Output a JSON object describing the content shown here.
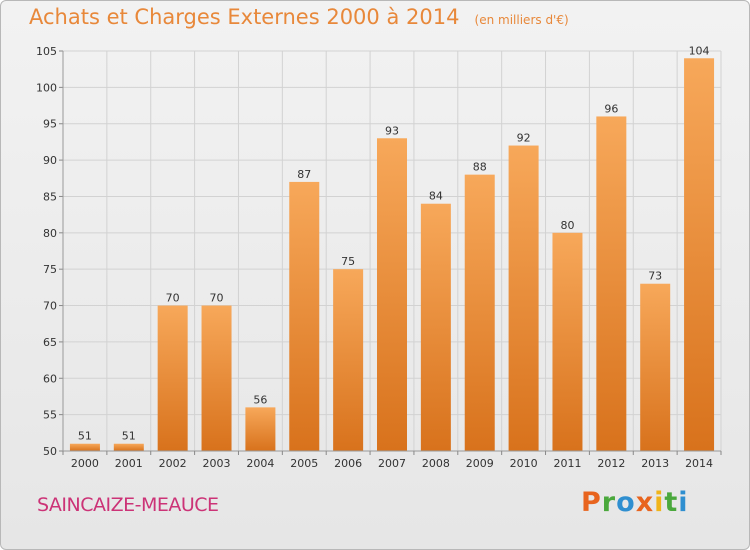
{
  "header": {
    "title": "Achats et Charges Externes 2000 à 2014",
    "subtitle": "(en milliers d'€)"
  },
  "footer": {
    "commune": "SAINCAIZE-MEAUCE",
    "logo_text": "Proxiti",
    "logo_colors": [
      "#e8641e",
      "#4aa83c",
      "#2f8fd0",
      "#e8641e",
      "#f0b41a",
      "#4aa83c",
      "#2f8fd0"
    ]
  },
  "chart_data": {
    "type": "bar",
    "categories": [
      "2000",
      "2001",
      "2002",
      "2003",
      "2004",
      "2005",
      "2006",
      "2007",
      "2008",
      "2009",
      "2010",
      "2011",
      "2012",
      "2013",
      "2014"
    ],
    "values": [
      51,
      51,
      70,
      70,
      56,
      87,
      75,
      93,
      84,
      88,
      92,
      80,
      96,
      73,
      104
    ],
    "ylim": [
      50,
      105
    ],
    "yticks": [
      50,
      55,
      60,
      65,
      70,
      75,
      80,
      85,
      90,
      95,
      100,
      105
    ],
    "grid": true,
    "bar_color_top": "#f7a85a",
    "bar_color_bottom": "#d8721c"
  }
}
